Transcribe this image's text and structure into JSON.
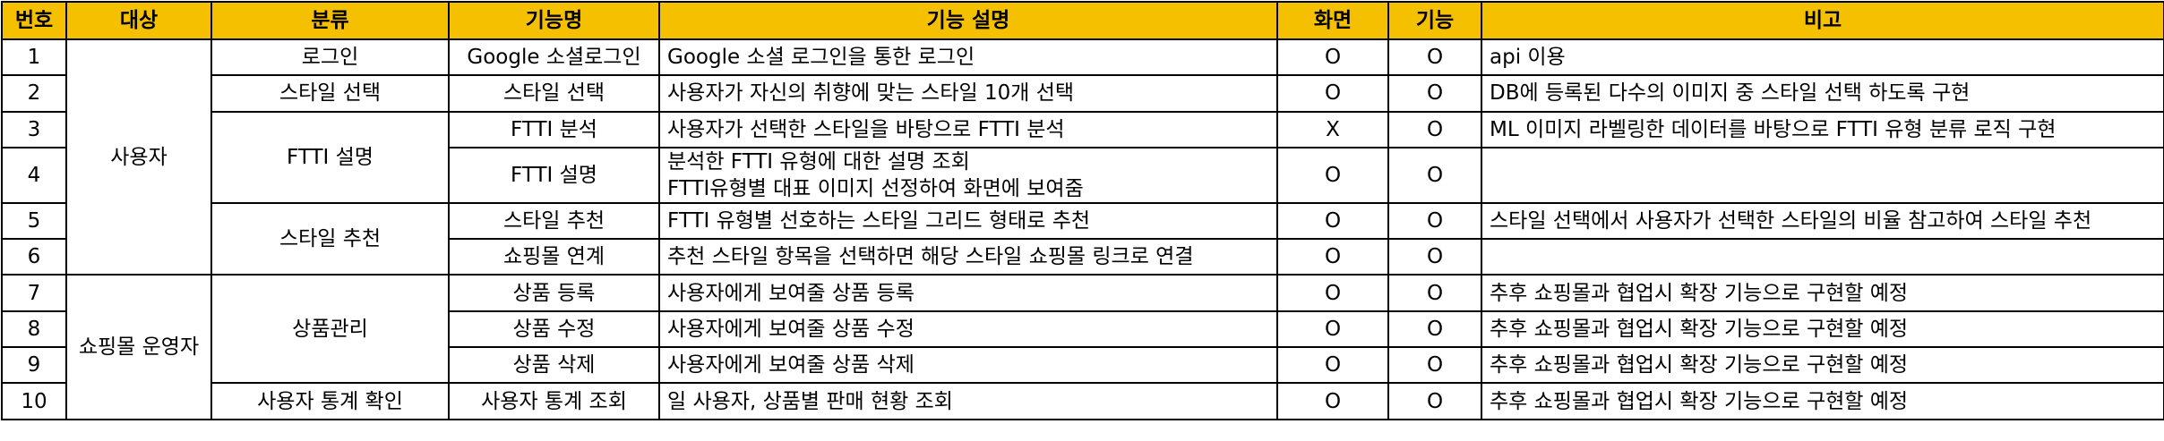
{
  "header": {
    "no": "번호",
    "target": "대상",
    "category": "분류",
    "feature": "기능명",
    "desc": "기능 설명",
    "screen": "화면",
    "func": "기능",
    "note": "비고"
  },
  "groups": {
    "user": "사용자",
    "operator": "쇼핑몰 운영자"
  },
  "categories": {
    "login": "로그인",
    "style_select": "스타일 선택",
    "ftti": "FTTI 설명",
    "style_rec": "스타일 추천",
    "product": "상품관리",
    "stats": "사용자 통계 확인"
  },
  "rows": [
    {
      "no": "1",
      "feature": "Google 소셜로그인",
      "desc": "Google 소셜 로그인을 통한 로그인",
      "screen": "O",
      "func": "O",
      "note": "api 이용"
    },
    {
      "no": "2",
      "feature": "스타일 선택",
      "desc": "사용자가 자신의 취향에 맞는 스타일 10개 선택",
      "screen": "O",
      "func": "O",
      "note": "DB에 등록된 다수의 이미지 중 스타일 선택 하도록 구현"
    },
    {
      "no": "3",
      "feature": "FTTI 분석",
      "desc": "사용자가 선택한 스타일을 바탕으로 FTTI 분석",
      "screen": "X",
      "func": "O",
      "note": "ML 이미지 라벨링한 데이터를 바탕으로 FTTI 유형 분류 로직 구현"
    },
    {
      "no": "4",
      "feature": "FTTI 설명",
      "desc": "분석한 FTTI 유형에 대한 설명 조회",
      "desc2": "FTTI유형별 대표 이미지 선정하여 화면에 보여줌",
      "screen": "O",
      "func": "O",
      "note": ""
    },
    {
      "no": "5",
      "feature": "스타일 추천",
      "desc": "FTTI 유형별 선호하는 스타일 그리드 형태로 추천",
      "screen": "O",
      "func": "O",
      "note": "스타일 선택에서 사용자가 선택한 스타일의 비율 참고하여 스타일 추천"
    },
    {
      "no": "6",
      "feature": "쇼핑몰 연계",
      "desc": "추천 스타일 항목을 선택하면 해당 스타일 쇼핑몰 링크로 연결",
      "screen": "O",
      "func": "O",
      "note": ""
    },
    {
      "no": "7",
      "feature": "상품 등록",
      "desc": "사용자에게 보여줄 상품 등록",
      "screen": "O",
      "func": "O",
      "note": "추후 쇼핑몰과 협업시 확장 기능으로 구현할 예정"
    },
    {
      "no": "8",
      "feature": "상품 수정",
      "desc": "사용자에게 보여줄 상품 수정",
      "screen": "O",
      "func": "O",
      "note": "추후 쇼핑몰과 협업시 확장 기능으로 구현할 예정"
    },
    {
      "no": "9",
      "feature": "상품 삭제",
      "desc": "사용자에게 보여줄 상품 삭제",
      "screen": "O",
      "func": "O",
      "note": "추후 쇼핑몰과 협업시 확장 기능으로 구현할 예정"
    },
    {
      "no": "10",
      "feature": "사용자 통계 조회",
      "desc": "일 사용자, 상품별 판매 현황 조회",
      "screen": "O",
      "func": "O",
      "note": "추후 쇼핑몰과 협업시 확장 기능으로 구현할 예정"
    }
  ],
  "colors": {
    "header_bg": "#f5c000",
    "border": "#000000"
  }
}
